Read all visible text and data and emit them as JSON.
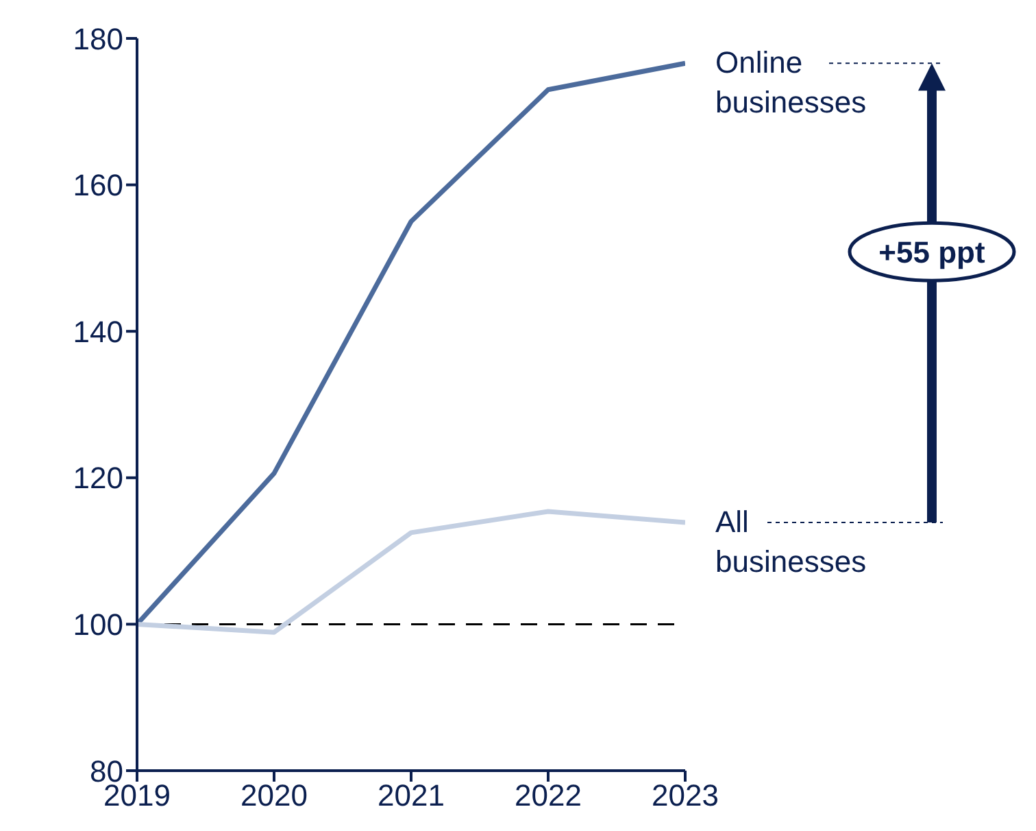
{
  "chart_data": {
    "type": "line",
    "x": [
      2019,
      2020,
      2021,
      2022,
      2023
    ],
    "series": [
      {
        "name": "Online businesses",
        "color": "#4c6b9c",
        "values": [
          100,
          120.6,
          155,
          173,
          176.6
        ]
      },
      {
        "name": "All businesses",
        "color": "#c3cfe2",
        "values": [
          100,
          98.9,
          112.5,
          115.4,
          113.9
        ]
      }
    ],
    "xlim": [
      2019,
      2023
    ],
    "xticks": [
      2019,
      2020,
      2021,
      2022,
      2023
    ],
    "ylim": [
      80,
      180
    ],
    "yticks": [
      80,
      100,
      120,
      140,
      160,
      180
    ],
    "ref_lines": [
      {
        "axis": "y",
        "value": 100,
        "line_style": "dashed",
        "color": "#000000"
      }
    ],
    "annotations": [
      "+55 ppt"
    ],
    "grid": false,
    "legend": false,
    "marker": "none",
    "line_style": "solid"
  }
}
